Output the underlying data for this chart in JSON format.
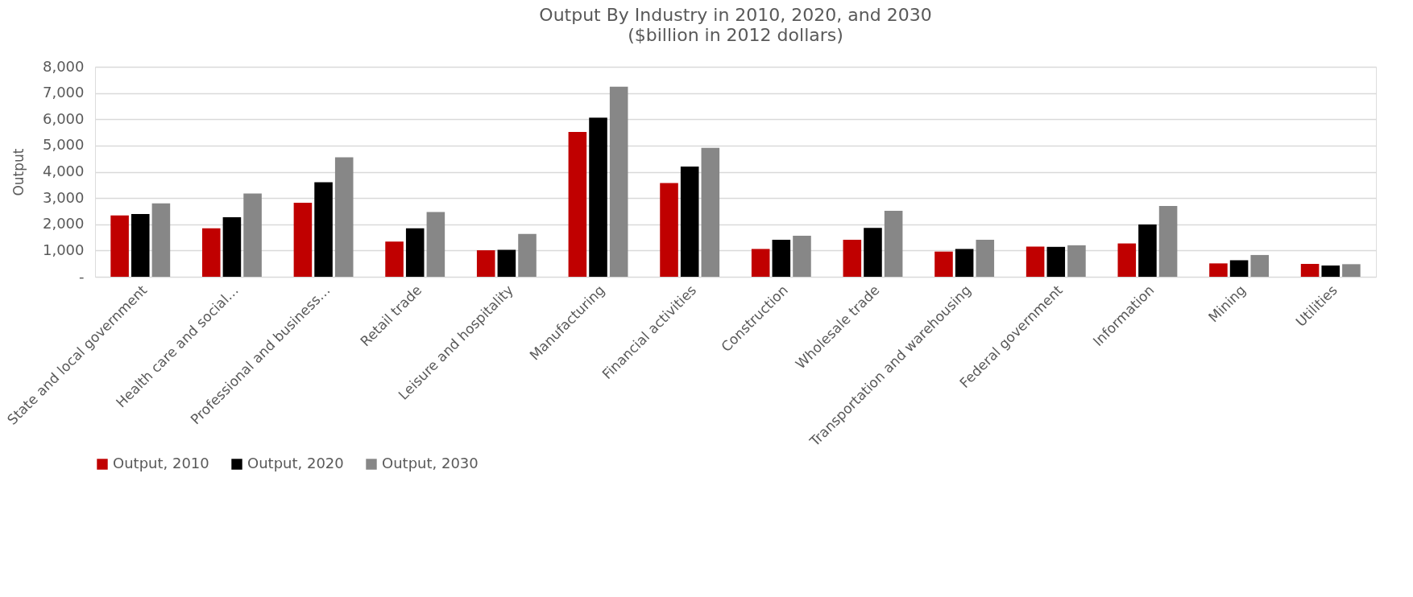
{
  "chart_data": {
    "type": "bar",
    "title": "Output By Industry in 2010, 2020, and 2030",
    "subtitle": "($billion in 2012 dollars)",
    "ylabel": "Output",
    "categories": [
      "State and local government",
      "Health care and social…",
      "Professional and business…",
      "Retail trade",
      "Leisure and hospitality",
      "Manufacturing",
      "Financial activities",
      "Construction",
      "Wholesale trade",
      "Transportation and warehousing",
      "Federal government",
      "Information",
      "Mining",
      "Utilities"
    ],
    "series": [
      {
        "name": "Output, 2010",
        "color": "#c00000",
        "values": [
          2340,
          1850,
          2820,
          1340,
          1010,
          5520,
          3570,
          1060,
          1410,
          960,
          1150,
          1270,
          510,
          490
        ]
      },
      {
        "name": "Output, 2020",
        "color": "#000000",
        "values": [
          2390,
          2270,
          3600,
          1850,
          1030,
          6060,
          4200,
          1410,
          1860,
          1060,
          1140,
          1990,
          630,
          430
        ]
      },
      {
        "name": "Output, 2030",
        "color": "#878787",
        "values": [
          2800,
          3170,
          4550,
          2470,
          1630,
          7240,
          4910,
          1560,
          2510,
          1410,
          1200,
          2700,
          830,
          480
        ]
      }
    ],
    "ylim": [
      0,
      8000
    ],
    "yticks": [
      {
        "value": 0,
        "label": "-"
      },
      {
        "value": 1000,
        "label": "1,000"
      },
      {
        "value": 2000,
        "label": "2,000"
      },
      {
        "value": 3000,
        "label": "3,000"
      },
      {
        "value": 4000,
        "label": "4,000"
      },
      {
        "value": 5000,
        "label": "5,000"
      },
      {
        "value": 6000,
        "label": "6,000"
      },
      {
        "value": 7000,
        "label": "7,000"
      },
      {
        "value": 8000,
        "label": "8,000"
      }
    ],
    "grid": "y",
    "legend": "bottom"
  }
}
